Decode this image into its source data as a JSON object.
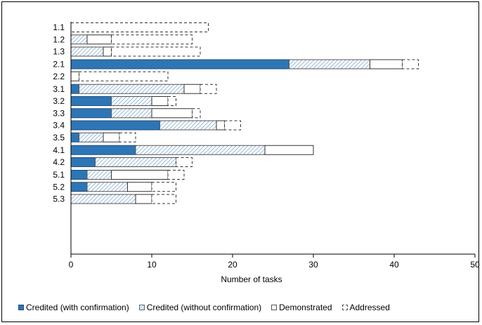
{
  "chart_data": {
    "type": "bar",
    "orientation": "horizontal",
    "stacked": true,
    "categories": [
      "1.1",
      "1.2",
      "1.3",
      "2.1",
      "2.2",
      "3.1",
      "3.2",
      "3.3",
      "3.4",
      "3.5",
      "4.1",
      "4.2",
      "5.1",
      "5.2",
      "5.3"
    ],
    "groups": [
      [
        "1.1",
        "1.2",
        "1.3"
      ],
      [
        "2.1",
        "2.2"
      ],
      [
        "3.1",
        "3.2",
        "3.3",
        "3.4",
        "3.5"
      ],
      [
        "4.1",
        "4.2"
      ],
      [
        "5.1",
        "5.2",
        "5.3"
      ]
    ],
    "series": [
      {
        "name": "Credited (with confirmation)",
        "style": "solid",
        "color": "#2e75b6",
        "values": [
          0,
          0,
          0,
          27,
          0,
          1,
          5,
          5,
          11,
          1,
          8,
          3,
          2,
          2,
          0
        ]
      },
      {
        "name": "Credited (without confirmation)",
        "style": "hatched",
        "color": "#9dc3e6",
        "values": [
          0,
          2,
          4,
          10,
          0,
          13,
          5,
          5,
          7,
          3,
          16,
          10,
          3,
          5,
          8
        ]
      },
      {
        "name": "Demonstrated",
        "style": "white",
        "color": "#ffffff",
        "values": [
          0,
          3,
          1,
          4,
          1,
          2,
          2,
          5,
          1,
          2,
          6,
          0,
          7,
          3,
          2
        ]
      },
      {
        "name": "Addressed",
        "style": "dashed",
        "color": "#ffffff",
        "values": [
          17,
          10,
          11,
          2,
          11,
          2,
          1,
          1,
          2,
          2,
          0,
          2,
          2,
          3,
          3
        ]
      }
    ],
    "xlabel": "Number of tasks",
    "ylabel": "",
    "xlim": [
      0,
      50
    ],
    "xticks": [
      0,
      10,
      20,
      30,
      40,
      50
    ],
    "grid": false,
    "legend_position": "bottom"
  }
}
